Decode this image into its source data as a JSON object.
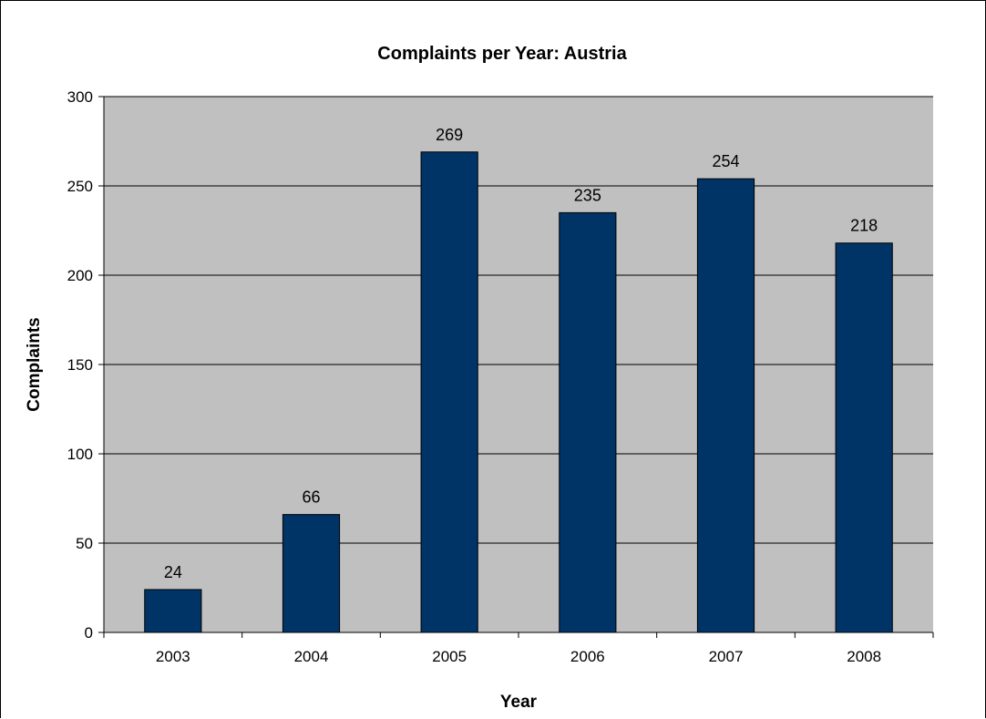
{
  "chart_data": {
    "type": "bar",
    "title": "Complaints per Year: Austria",
    "xlabel": "Year",
    "ylabel": "Complaints",
    "categories": [
      "2003",
      "2004",
      "2005",
      "2006",
      "2007",
      "2008"
    ],
    "values": [
      24,
      66,
      269,
      235,
      254,
      218
    ],
    "data_labels": [
      "24",
      "66",
      "269",
      "235",
      "254",
      "218"
    ],
    "yticks": [
      0,
      50,
      100,
      150,
      200,
      250,
      300
    ],
    "ylim": [
      0,
      300
    ],
    "grid": true,
    "legend": "none",
    "colors": {
      "bar": "#003366",
      "plot_background": "#c0c0c0",
      "gridline": "#000000"
    }
  }
}
